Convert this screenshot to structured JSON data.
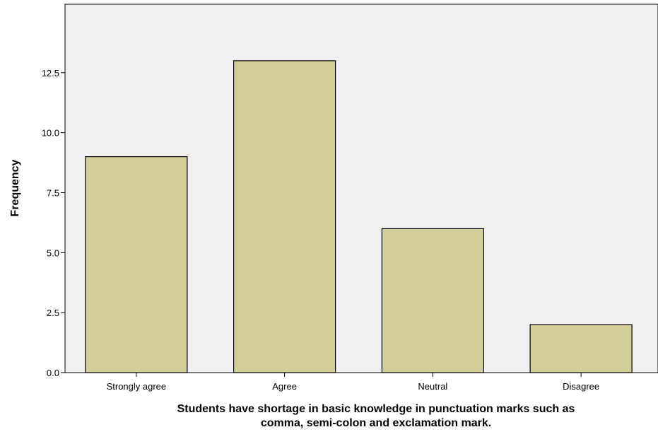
{
  "chart_data": {
    "type": "bar",
    "categories": [
      "Strongly agree",
      "Agree",
      "Neutral",
      "Disagree"
    ],
    "values": [
      9,
      13,
      6,
      2
    ],
    "xlabel_lines": [
      "Students have shortage in basic knowledge in punctuation marks such as",
      "comma, semi-colon and exclamation mark."
    ],
    "ylabel": "Frequency",
    "ylim": [
      0,
      15
    ],
    "yticks": [
      "0.0",
      "2.5",
      "5.0",
      "7.5",
      "10.0",
      "12.5"
    ],
    "ytick_values": [
      0,
      2.5,
      5,
      7.5,
      10,
      12.5
    ],
    "grid": false,
    "bar_color": "#d3ce98",
    "plot_background": "#f0f0f0"
  }
}
